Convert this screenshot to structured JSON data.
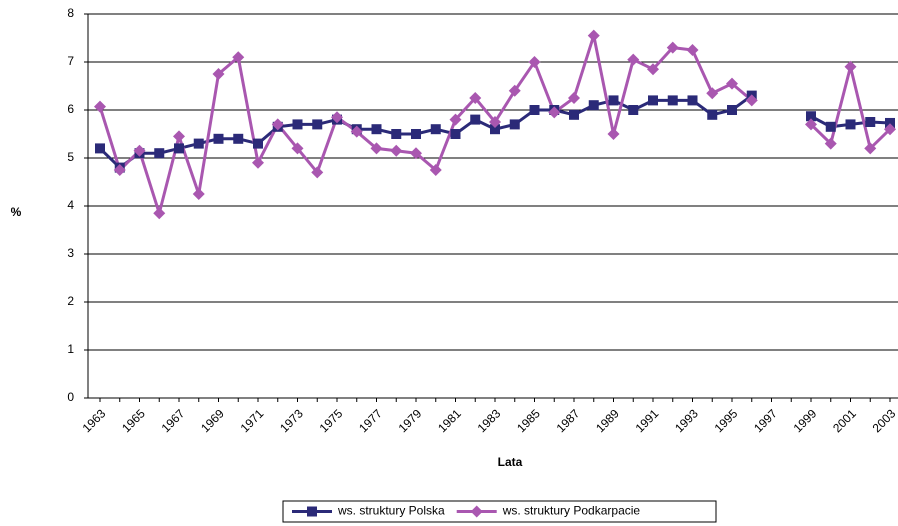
{
  "chart_data": {
    "type": "line",
    "xlabel": "Lata",
    "ylabel": "%",
    "categories": [
      "1963",
      null,
      "1965",
      null,
      "1967",
      null,
      "1969",
      null,
      "1971",
      null,
      "1973",
      null,
      "1975",
      null,
      "1977",
      null,
      "1979",
      null,
      "1981",
      null,
      "1983",
      null,
      "1985",
      null,
      "1987",
      null,
      "1989",
      null,
      "1991",
      null,
      "1993",
      null,
      "1995",
      null,
      "1997",
      null,
      "1999",
      null,
      "2001",
      null,
      "2003"
    ],
    "series": [
      {
        "name": "ws. struktury Polska",
        "color": "#2b2a78",
        "marker": "square",
        "values": [
          5.2,
          4.8,
          5.1,
          5.1,
          5.2,
          5.3,
          5.4,
          5.4,
          5.3,
          5.65,
          5.7,
          5.7,
          5.8,
          5.6,
          5.6,
          5.5,
          5.5,
          5.6,
          5.5,
          5.8,
          5.6,
          5.7,
          6.0,
          6.0,
          5.9,
          6.1,
          6.2,
          6.0,
          6.2,
          6.2,
          6.2,
          5.9,
          6.0,
          6.3,
          null,
          null,
          5.87,
          5.65,
          5.7,
          5.75,
          5.73
        ]
      },
      {
        "name": "ws. struktury  Podkarpacie",
        "color": "#a957b0",
        "marker": "diamond",
        "values": [
          6.07,
          4.75,
          5.15,
          3.85,
          5.45,
          4.25,
          6.75,
          7.1,
          4.9,
          5.7,
          5.2,
          4.7,
          5.85,
          5.55,
          5.2,
          5.15,
          5.1,
          4.75,
          5.8,
          6.25,
          5.75,
          6.4,
          7.0,
          5.95,
          6.25,
          7.55,
          5.5,
          7.05,
          6.85,
          7.3,
          7.25,
          6.35,
          6.55,
          6.2,
          null,
          null,
          5.7,
          5.3,
          6.9,
          5.2,
          5.6
        ]
      }
    ],
    "ylim": [
      0,
      8
    ],
    "yticks": [
      0,
      1,
      2,
      3,
      4,
      5,
      6,
      7,
      8
    ],
    "grid": true,
    "legend": "bottom"
  }
}
